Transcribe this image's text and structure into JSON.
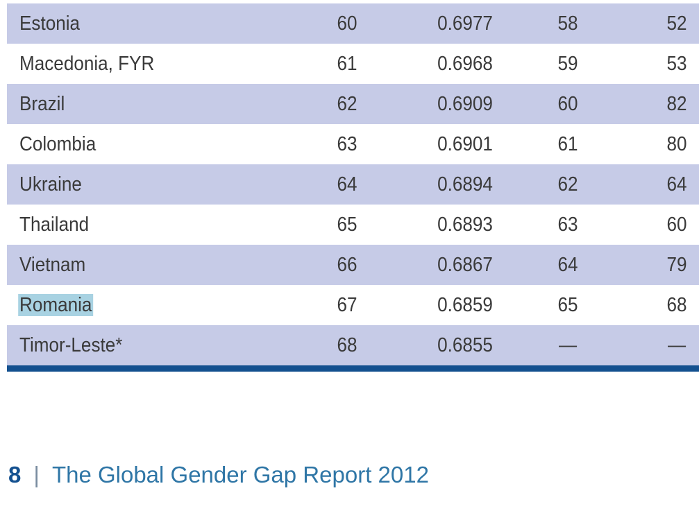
{
  "table": {
    "rows": [
      [
        "Estonia",
        "60",
        "0.6977",
        "58",
        "52"
      ],
      [
        "Macedonia, FYR",
        "61",
        "0.6968",
        "59",
        "53"
      ],
      [
        "Brazil",
        "62",
        "0.6909",
        "60",
        "82"
      ],
      [
        "Colombia",
        "63",
        "0.6901",
        "61",
        "80"
      ],
      [
        "Ukraine",
        "64",
        "0.6894",
        "62",
        "64"
      ],
      [
        "Thailand",
        "65",
        "0.6893",
        "63",
        "60"
      ],
      [
        "Vietnam",
        "66",
        "0.6867",
        "64",
        "79"
      ],
      [
        "Romania",
        "67",
        "0.6859",
        "65",
        "68"
      ],
      [
        "Timor-Leste*",
        "68",
        "0.6855",
        "—",
        "—"
      ]
    ]
  },
  "footer": {
    "page": "8",
    "separator": "|",
    "title": "The Global Gender Gap Report 2012"
  }
}
